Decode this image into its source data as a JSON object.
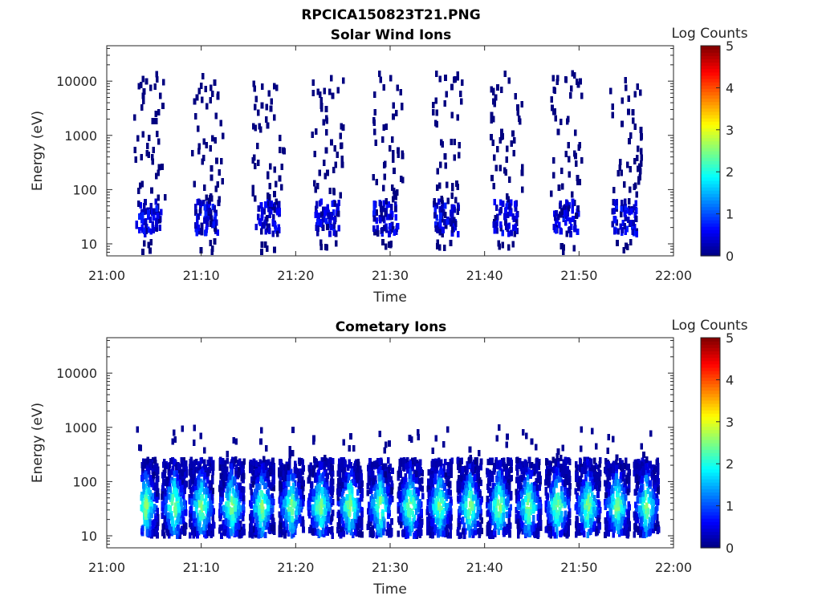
{
  "figure_title": "RPCICA150823T21.PNG",
  "chart_data": [
    {
      "type": "heatmap",
      "title": "Solar Wind Ions",
      "xlabel": "Time",
      "ylabel": "Energy (eV)",
      "x_tick_labels": [
        "21:00",
        "21:10",
        "21:20",
        "21:30",
        "21:40",
        "21:50",
        "22:00"
      ],
      "xlim_minutes": [
        0,
        60
      ],
      "y_scale": "log",
      "ylim": [
        6,
        45000
      ],
      "y_tick_labels": [
        "10",
        "100",
        "1000",
        "10000"
      ],
      "y_tick_values": [
        10,
        100,
        1000,
        10000
      ],
      "colorbar": {
        "label": "Log Counts",
        "range": [
          0,
          5
        ],
        "tick_labels": [
          "0",
          "1",
          "2",
          "3",
          "4",
          "5"
        ],
        "colormap": "jet"
      },
      "scan_centers_minutes": [
        4.3,
        10.5,
        16.9,
        23.2,
        29.4,
        35.8,
        42.1,
        48.5,
        54.7
      ],
      "core_energy_eV": [
        15,
        60
      ],
      "core_log_counts": [
        0,
        0.8
      ],
      "sparse_energy_eV": [
        60,
        14000
      ],
      "sparse_log_counts": 0
    },
    {
      "type": "heatmap",
      "title": "Cometary Ions",
      "xlabel": "Time",
      "ylabel": "Energy (eV)",
      "x_tick_labels": [
        "21:00",
        "21:10",
        "21:20",
        "21:30",
        "21:40",
        "21:50",
        "22:00"
      ],
      "xlim_minutes": [
        0,
        60
      ],
      "y_scale": "log",
      "ylim": [
        6,
        45000
      ],
      "y_tick_labels": [
        "10",
        "100",
        "1000",
        "10000"
      ],
      "y_tick_values": [
        10,
        100,
        1000,
        10000
      ],
      "colorbar": {
        "label": "Log Counts",
        "range": [
          0,
          5
        ],
        "tick_labels": [
          "0",
          "1",
          "2",
          "3",
          "4",
          "5"
        ],
        "colormap": "jet"
      },
      "data_start_minutes": 3.5,
      "data_end_minutes": 60,
      "burst_centers_minutes": [
        4.0,
        7.0,
        9.9,
        13.1,
        16.3,
        19.4,
        22.5,
        25.6,
        28.8,
        32.0,
        35.1,
        38.3,
        41.4,
        44.5,
        47.6,
        50.8,
        53.9,
        57.0
      ],
      "core_energy_eV": [
        10,
        250
      ],
      "peak_energy_eV": 35,
      "peak_log_counts": 2.6,
      "scattered_energy_eV": [
        250,
        1000
      ]
    }
  ]
}
